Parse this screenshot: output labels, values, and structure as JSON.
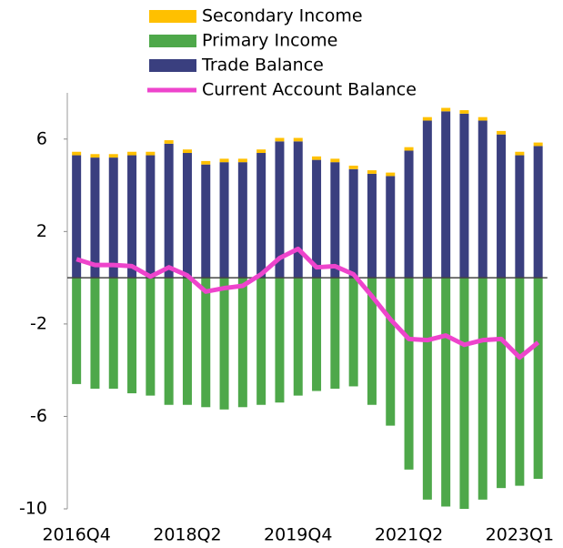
{
  "chart_data": {
    "type": "bar",
    "categories": [
      "2016Q4",
      null,
      null,
      null,
      null,
      null,
      "2018Q2",
      null,
      null,
      null,
      null,
      null,
      "2019Q4",
      null,
      null,
      null,
      null,
      null,
      "2021Q2",
      null,
      null,
      null,
      null,
      null,
      "2023Q1",
      null
    ],
    "series": [
      {
        "name": "Secondary Income",
        "type": "bar",
        "color": "#ffc000",
        "values": [
          0.15,
          0.15,
          0.15,
          0.15,
          0.15,
          0.15,
          0.15,
          0.15,
          0.15,
          0.15,
          0.15,
          0.15,
          0.15,
          0.15,
          0.15,
          0.15,
          0.15,
          0.15,
          0.15,
          0.15,
          0.15,
          0.15,
          0.15,
          0.15,
          0.15,
          0.15
        ]
      },
      {
        "name": "Primary Income",
        "type": "bar",
        "color": "#4ea84a",
        "values": [
          -4.6,
          -4.8,
          -4.8,
          -5.0,
          -5.1,
          -5.5,
          -5.5,
          -5.6,
          -5.7,
          -5.6,
          -5.5,
          -5.4,
          -5.1,
          -4.9,
          -4.8,
          -4.7,
          -5.5,
          -6.4,
          -8.3,
          -9.6,
          -9.9,
          -10.0,
          -9.6,
          -9.1,
          -9.0,
          -8.7
        ]
      },
      {
        "name": "Trade Balance",
        "type": "bar",
        "color": "#3a3f7f",
        "values": [
          5.3,
          5.2,
          5.2,
          5.3,
          5.3,
          5.8,
          5.4,
          4.9,
          5.0,
          5.0,
          5.4,
          5.9,
          5.9,
          5.1,
          5.0,
          4.7,
          4.5,
          4.4,
          5.5,
          6.8,
          7.2,
          7.1,
          6.8,
          6.2,
          5.3,
          5.7
        ]
      },
      {
        "name": "Current Account Balance",
        "type": "line",
        "color": "#ee44cc",
        "values": [
          0.8,
          0.55,
          0.55,
          0.5,
          0.05,
          0.45,
          0.1,
          -0.6,
          -0.45,
          -0.35,
          0.15,
          0.85,
          1.25,
          0.45,
          0.5,
          0.15,
          -0.8,
          -1.8,
          -2.65,
          -2.7,
          -2.5,
          -2.9,
          -2.7,
          -2.65,
          -3.45,
          -2.8
        ]
      }
    ],
    "ylim": [
      -10,
      8
    ],
    "yticks": [
      -10,
      -6,
      -2,
      2,
      6
    ],
    "legend": "top"
  }
}
